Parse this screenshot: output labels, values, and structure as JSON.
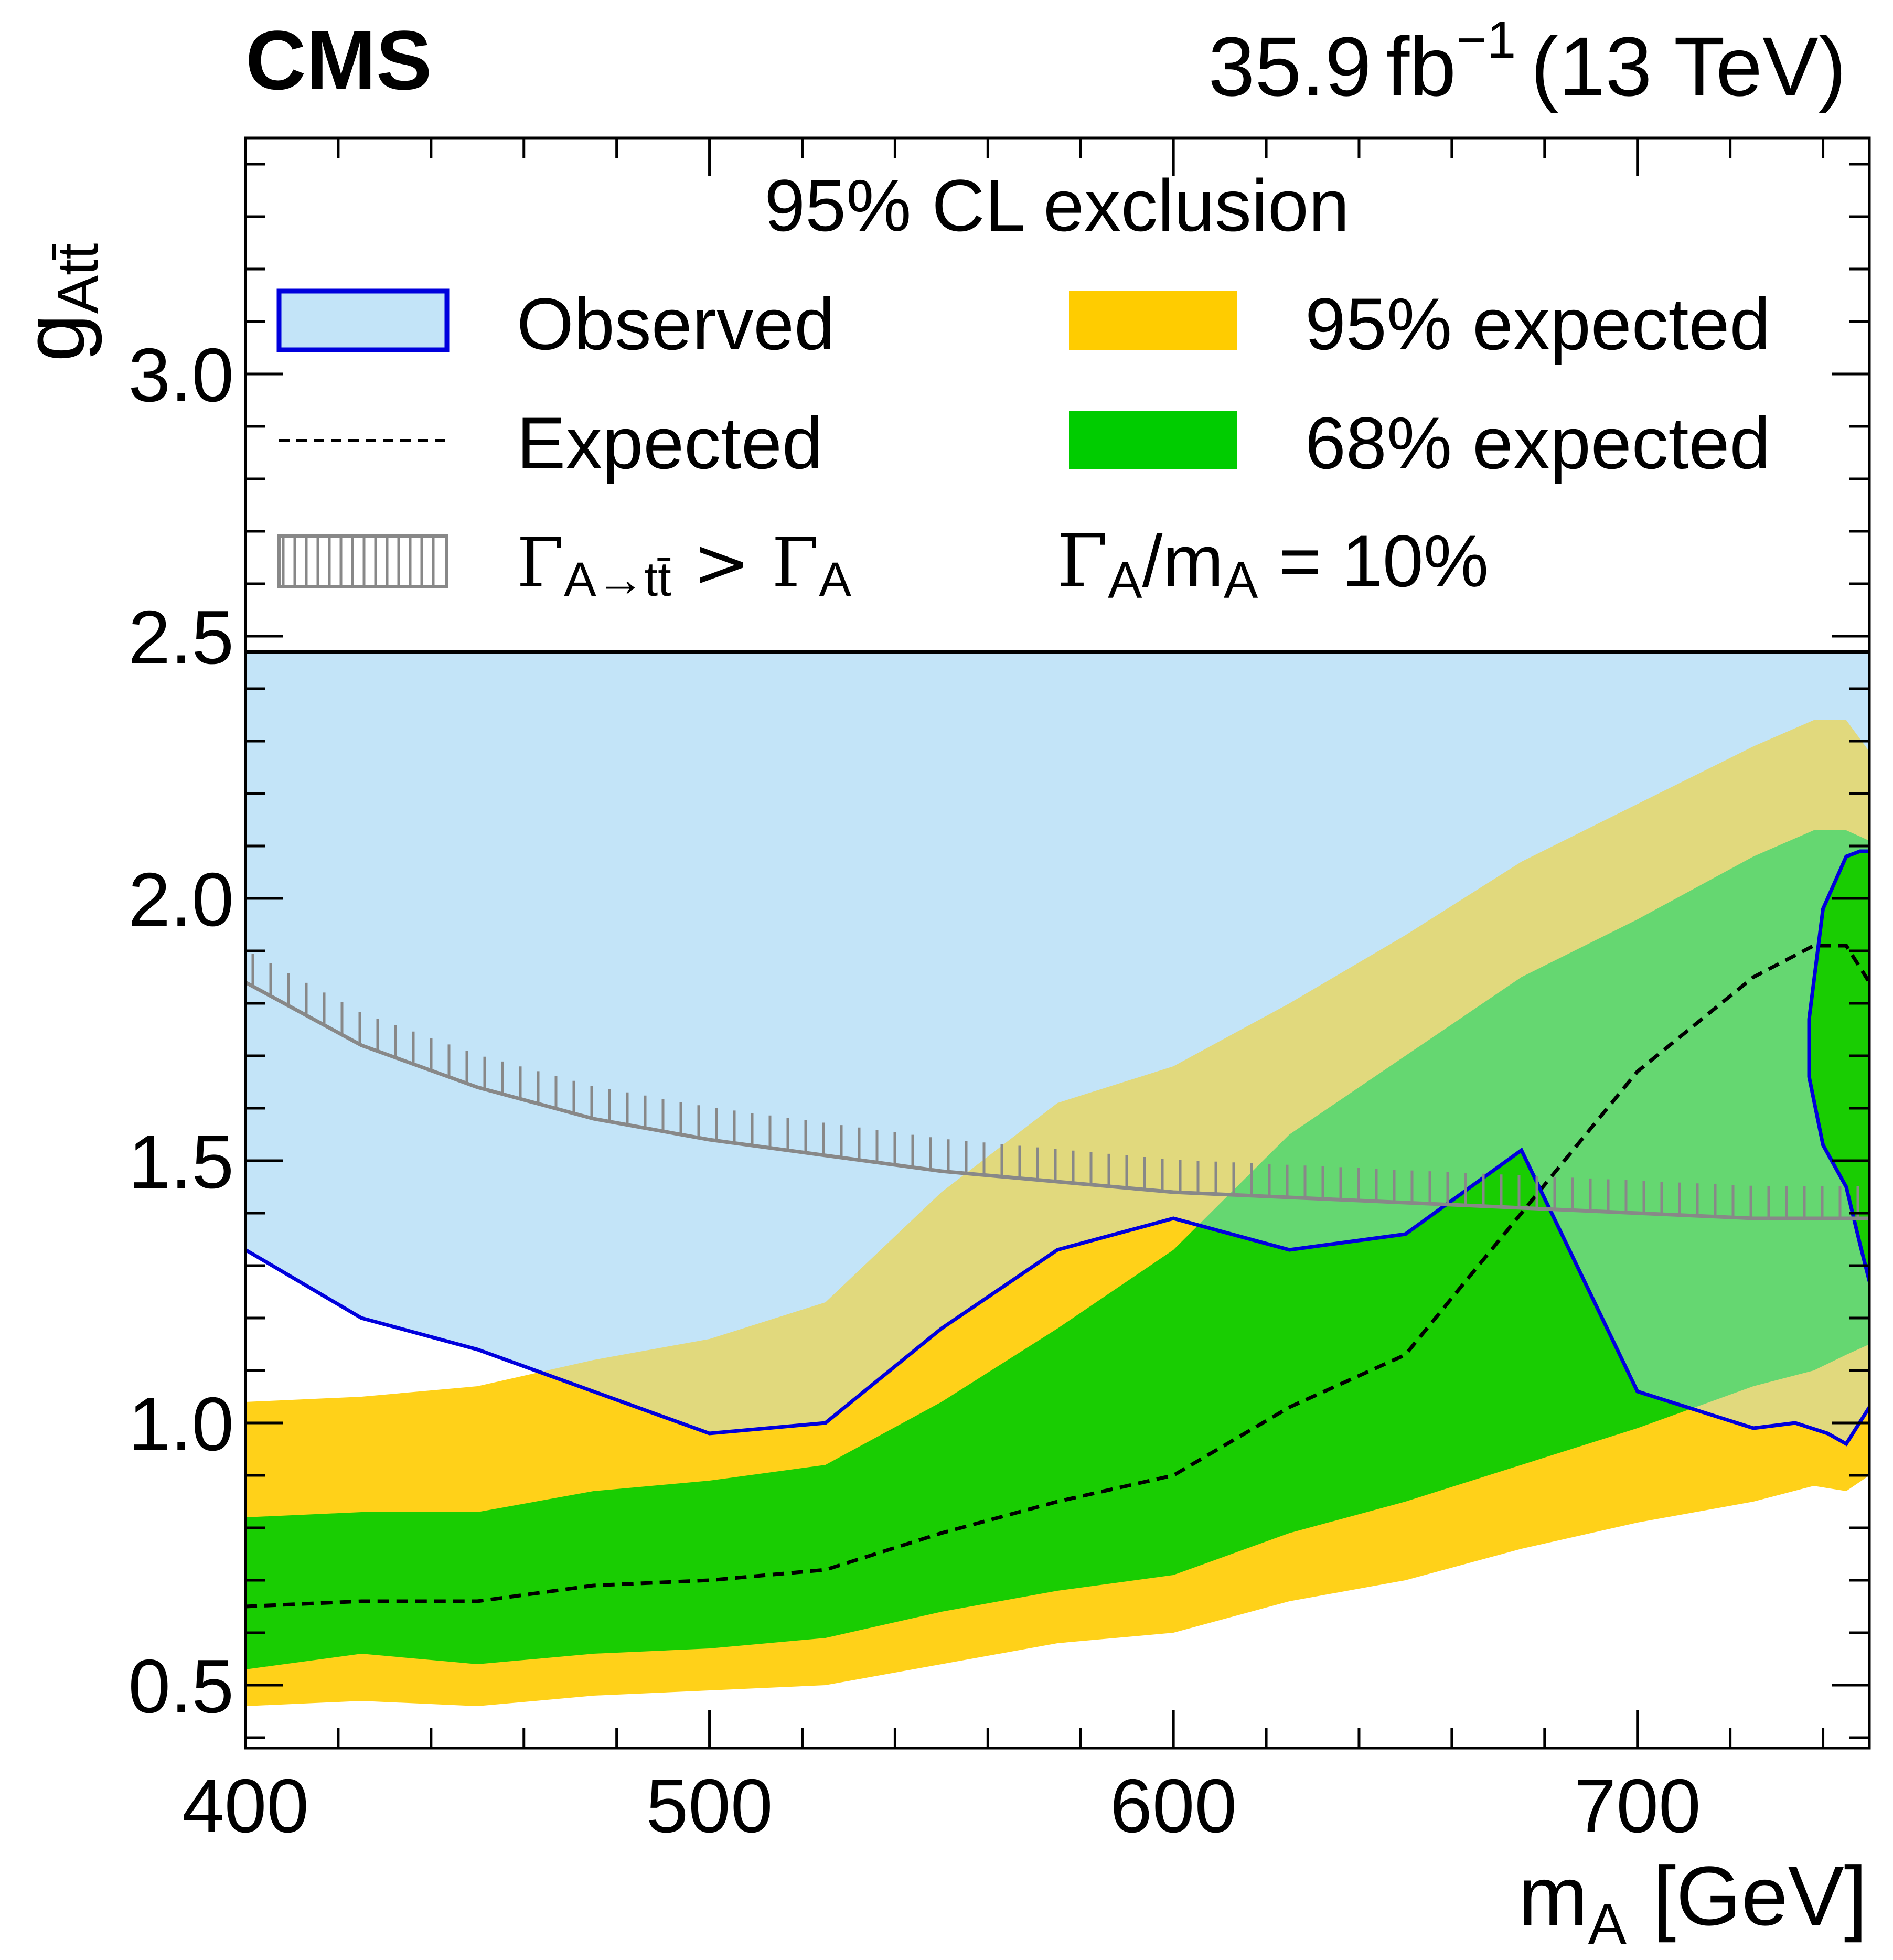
{
  "header": {
    "experiment": "CMS",
    "lumi_value": "35.9",
    "lumi_unit": "fb",
    "lumi_exponent": "−1",
    "energy": "(13 TeV)"
  },
  "legend": {
    "title": "95% CL exclusion",
    "observed": "Observed",
    "expected": "Expected",
    "expected95": "95% expected",
    "expected68": "68% expected",
    "width_gamma": "Γ",
    "width_sub": "A→tt̄",
    "width_gt": " > ",
    "width_gamma2": "Γ",
    "width_sub2": "A",
    "ratio_gamma": "Γ",
    "ratio_sub1": "A",
    "ratio_mid": "/m",
    "ratio_sub2": "A",
    "ratio_value": " = 10%"
  },
  "colors": {
    "observed_fill": "#c3e4f8",
    "observed_line": "#0000dd",
    "band95": "#ffcc00",
    "band68": "#00cc00",
    "expected_line": "#000000",
    "width_limit": "#888888"
  },
  "chart_data": {
    "type": "line",
    "title": "",
    "xlabel": "m",
    "xlabel_sub": "A",
    "xlabel_unit": "[GeV]",
    "ylabel": "g",
    "ylabel_sub": "Att̄",
    "xlim": [
      400,
      750
    ],
    "ylim": [
      0.38,
      3.45
    ],
    "x_ticks": [
      "400",
      "500",
      "600",
      "700"
    ],
    "y_ticks": [
      "0.5",
      "1.0",
      "1.5",
      "2.0",
      "2.5",
      "3.0"
    ],
    "x_tick_values": [
      400,
      500,
      600,
      700
    ],
    "y_tick_values": [
      0.5,
      1.0,
      1.5,
      2.0,
      2.5,
      3.0
    ],
    "x_minor_step": 20,
    "y_minor_step": 0.1,
    "legend_boundary_y": 2.47,
    "series": [
      {
        "name": "95% expected",
        "type": "band",
        "x": [
          400,
          425,
          450,
          475,
          500,
          525,
          550,
          575,
          600,
          625,
          650,
          675,
          700,
          725,
          738,
          745,
          750
        ],
        "low": [
          0.46,
          0.47,
          0.46,
          0.48,
          0.49,
          0.5,
          0.54,
          0.58,
          0.6,
          0.66,
          0.7,
          0.76,
          0.81,
          0.85,
          0.88,
          0.87,
          0.9
        ],
        "high": [
          1.04,
          1.05,
          1.07,
          1.12,
          1.16,
          1.23,
          1.44,
          1.61,
          1.68,
          1.8,
          1.93,
          2.07,
          2.18,
          2.29,
          2.34,
          2.34,
          2.28
        ]
      },
      {
        "name": "68% expected",
        "type": "band",
        "x": [
          400,
          425,
          450,
          475,
          500,
          525,
          550,
          575,
          600,
          625,
          650,
          675,
          700,
          725,
          738,
          745,
          750
        ],
        "low": [
          0.53,
          0.56,
          0.54,
          0.56,
          0.57,
          0.59,
          0.64,
          0.68,
          0.71,
          0.79,
          0.85,
          0.92,
          0.99,
          1.07,
          1.1,
          1.13,
          1.15
        ],
        "high": [
          0.82,
          0.83,
          0.83,
          0.87,
          0.89,
          0.92,
          1.04,
          1.18,
          1.33,
          1.55,
          1.7,
          1.85,
          1.96,
          2.08,
          2.13,
          2.13,
          2.11
        ]
      },
      {
        "name": "Expected",
        "type": "dashed",
        "x": [
          400,
          425,
          450,
          475,
          500,
          525,
          550,
          575,
          600,
          625,
          650,
          675,
          700,
          725,
          738,
          745,
          750
        ],
        "y": [
          0.65,
          0.66,
          0.66,
          0.69,
          0.7,
          0.72,
          0.79,
          0.85,
          0.9,
          1.03,
          1.13,
          1.4,
          1.67,
          1.85,
          1.91,
          1.91,
          1.84
        ]
      },
      {
        "name": "Observed",
        "type": "excluded",
        "lower_x": [
          400,
          425,
          450,
          475,
          500,
          525,
          550,
          575,
          600,
          625,
          650,
          675,
          700,
          725,
          734,
          741,
          745,
          750
        ],
        "lower_y": [
          1.33,
          1.2,
          1.14,
          1.06,
          0.98,
          1.0,
          1.18,
          1.33,
          1.39,
          1.33,
          1.36,
          1.52,
          1.06,
          0.99,
          1.0,
          0.98,
          0.96,
          1.03
        ],
        "upper_x": [
          750,
          748,
          745,
          740,
          737,
          737,
          740,
          745,
          748,
          750
        ],
        "upper_y": [
          1.27,
          1.34,
          1.45,
          1.53,
          1.66,
          1.77,
          1.98,
          2.08,
          2.09,
          2.09
        ],
        "upper_edge_y": 2.47
      },
      {
        "name": "Γ(A→tt̄) > Γ(A)",
        "type": "hatched_limit",
        "x": [
          400,
          425,
          450,
          475,
          500,
          525,
          550,
          575,
          600,
          625,
          650,
          675,
          700,
          725,
          750
        ],
        "y": [
          1.84,
          1.72,
          1.64,
          1.58,
          1.54,
          1.51,
          1.48,
          1.46,
          1.44,
          1.43,
          1.42,
          1.41,
          1.4,
          1.39,
          1.39
        ]
      }
    ]
  }
}
